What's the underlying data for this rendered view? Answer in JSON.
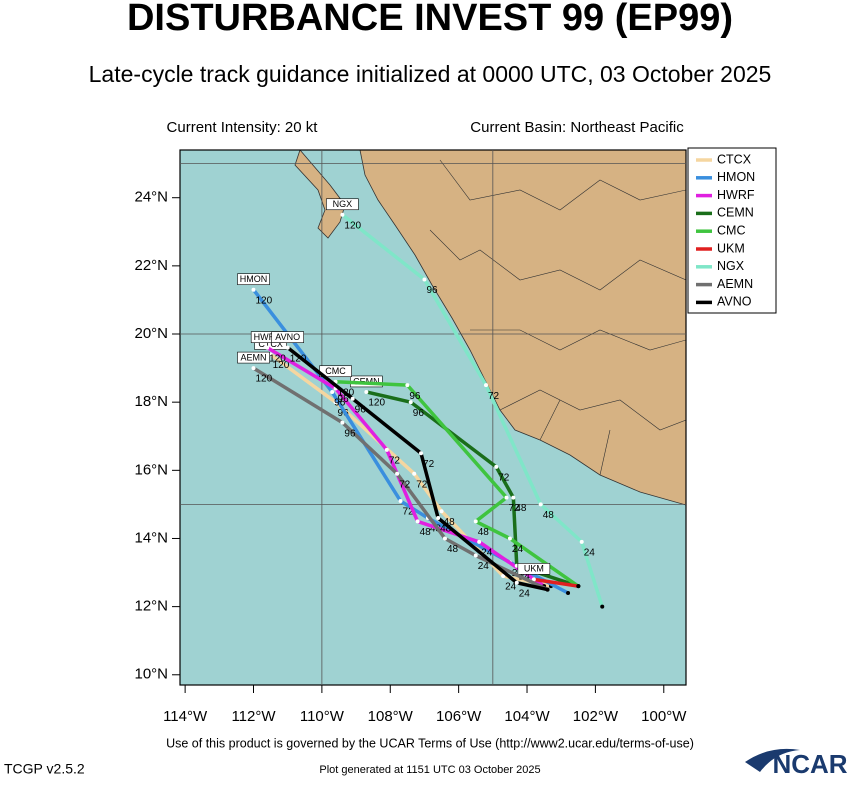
{
  "header": {
    "title": "DISTURBANCE INVEST 99 (EP99)",
    "subtitle": "Late-cycle track guidance initialized at 0000 UTC, 03 October 2025",
    "intensity": "Current Intensity: 20 kt",
    "basin": "Current Basin: Northeast Pacific"
  },
  "map": {
    "lonlim": [
      -114.15,
      -99.35
    ],
    "latlim": [
      9.7,
      25.4
    ],
    "xticks": [
      {
        "value": -114,
        "label": "114°W"
      },
      {
        "value": -112,
        "label": "112°W"
      },
      {
        "value": -110,
        "label": "110°W"
      },
      {
        "value": -108,
        "label": "108°W"
      },
      {
        "value": -106,
        "label": "106°W"
      },
      {
        "value": -104,
        "label": "104°W"
      },
      {
        "value": -102,
        "label": "102°W"
      },
      {
        "value": -100,
        "label": "100°W"
      }
    ],
    "yticks": [
      {
        "value": 10,
        "label": "10°N"
      },
      {
        "value": 12,
        "label": "12°N"
      },
      {
        "value": 14,
        "label": "14°N"
      },
      {
        "value": 16,
        "label": "16°N"
      },
      {
        "value": 18,
        "label": "18°N"
      },
      {
        "value": 20,
        "label": "20°N"
      },
      {
        "value": 22,
        "label": "22°N"
      },
      {
        "value": 24,
        "label": "24°N"
      }
    ],
    "grid_lon": [
      -110,
      -105
    ],
    "grid_lat": [
      15,
      20,
      25
    ],
    "tracks": [
      {
        "name": "CTCX",
        "color": "#f5d6a0",
        "lon": [
          -103.3,
          -104.7,
          -106.5,
          -107.3,
          -109.6,
          -111.5
        ],
        "lat": [
          12.6,
          12.9,
          14.8,
          15.9,
          18.0,
          19.4
        ],
        "hour_labels": [
          24,
          48,
          72,
          96,
          120
        ]
      },
      {
        "name": "HMON",
        "color": "#3a8fde",
        "lon": [
          -102.8,
          -104.5,
          -106.9,
          -107.7,
          -109.7,
          -112.0
        ],
        "lat": [
          12.4,
          13.3,
          14.6,
          15.1,
          18.3,
          21.3
        ],
        "hour_labels": [
          24,
          48,
          72,
          96,
          120
        ]
      },
      {
        "name": "HWRF",
        "color": "#e020e0",
        "lon": [
          -103.5,
          -105.4,
          -107.2,
          -108.1,
          -109.6,
          -111.6
        ],
        "lat": [
          12.6,
          13.9,
          14.5,
          16.6,
          18.4,
          19.6
        ],
        "hour_labels": [
          24,
          48,
          72,
          96,
          120
        ]
      },
      {
        "name": "CEMN",
        "color": "#1a6e1a",
        "lon": [
          -102.5,
          -104.3,
          -104.4,
          -104.9,
          -107.4,
          -108.7
        ],
        "lat": [
          12.6,
          13.2,
          15.2,
          16.1,
          18.0,
          18.3
        ],
        "hour_labels": [
          24,
          48,
          72,
          96,
          120
        ]
      },
      {
        "name": "CMC",
        "color": "#3fc43f",
        "lon": [
          -102.5,
          -104.5,
          -105.5,
          -104.6,
          -107.5,
          -109.6
        ],
        "lat": [
          12.6,
          14.0,
          14.5,
          15.2,
          18.5,
          18.6
        ],
        "hour_labels": [
          24,
          48,
          72,
          96,
          120
        ]
      },
      {
        "name": "UKM",
        "color": "#e02020",
        "lon": [
          -102.5,
          -103.8
        ],
        "lat": [
          12.6,
          12.8
        ],
        "hour_labels": []
      },
      {
        "name": "NGX",
        "color": "#7fe6c8",
        "lon": [
          -101.8,
          -102.4,
          -103.6,
          -105.2,
          -107.0,
          -109.4
        ],
        "lat": [
          12.0,
          13.9,
          15.0,
          18.5,
          21.6,
          23.5
        ],
        "hour_labels": [
          24,
          48,
          72,
          96,
          120
        ]
      },
      {
        "name": "AEMN",
        "color": "#707070",
        "lon": [
          -103.4,
          -105.5,
          -106.4,
          -107.8,
          -109.4,
          -112.0
        ],
        "lat": [
          12.5,
          13.5,
          14.0,
          15.9,
          17.4,
          19.0
        ],
        "hour_labels": [
          24,
          48,
          72,
          96,
          120
        ]
      },
      {
        "name": "AVNO",
        "color": "#000000",
        "lon": [
          -103.4,
          -104.3,
          -106.6,
          -107.1,
          -109.1,
          -111.0
        ],
        "lat": [
          12.5,
          12.7,
          14.6,
          16.5,
          18.1,
          19.6
        ],
        "hour_labels": [
          24,
          48,
          72,
          96,
          120
        ]
      }
    ]
  },
  "footer": {
    "terms": "Use of this product is governed by the UCAR Terms of Use (http://www2.ucar.edu/terms-of-use)",
    "version": "TCGP v2.5.2",
    "generated": "Plot generated at 1151 UTC   03 October 2025",
    "logo": "NCAR"
  }
}
